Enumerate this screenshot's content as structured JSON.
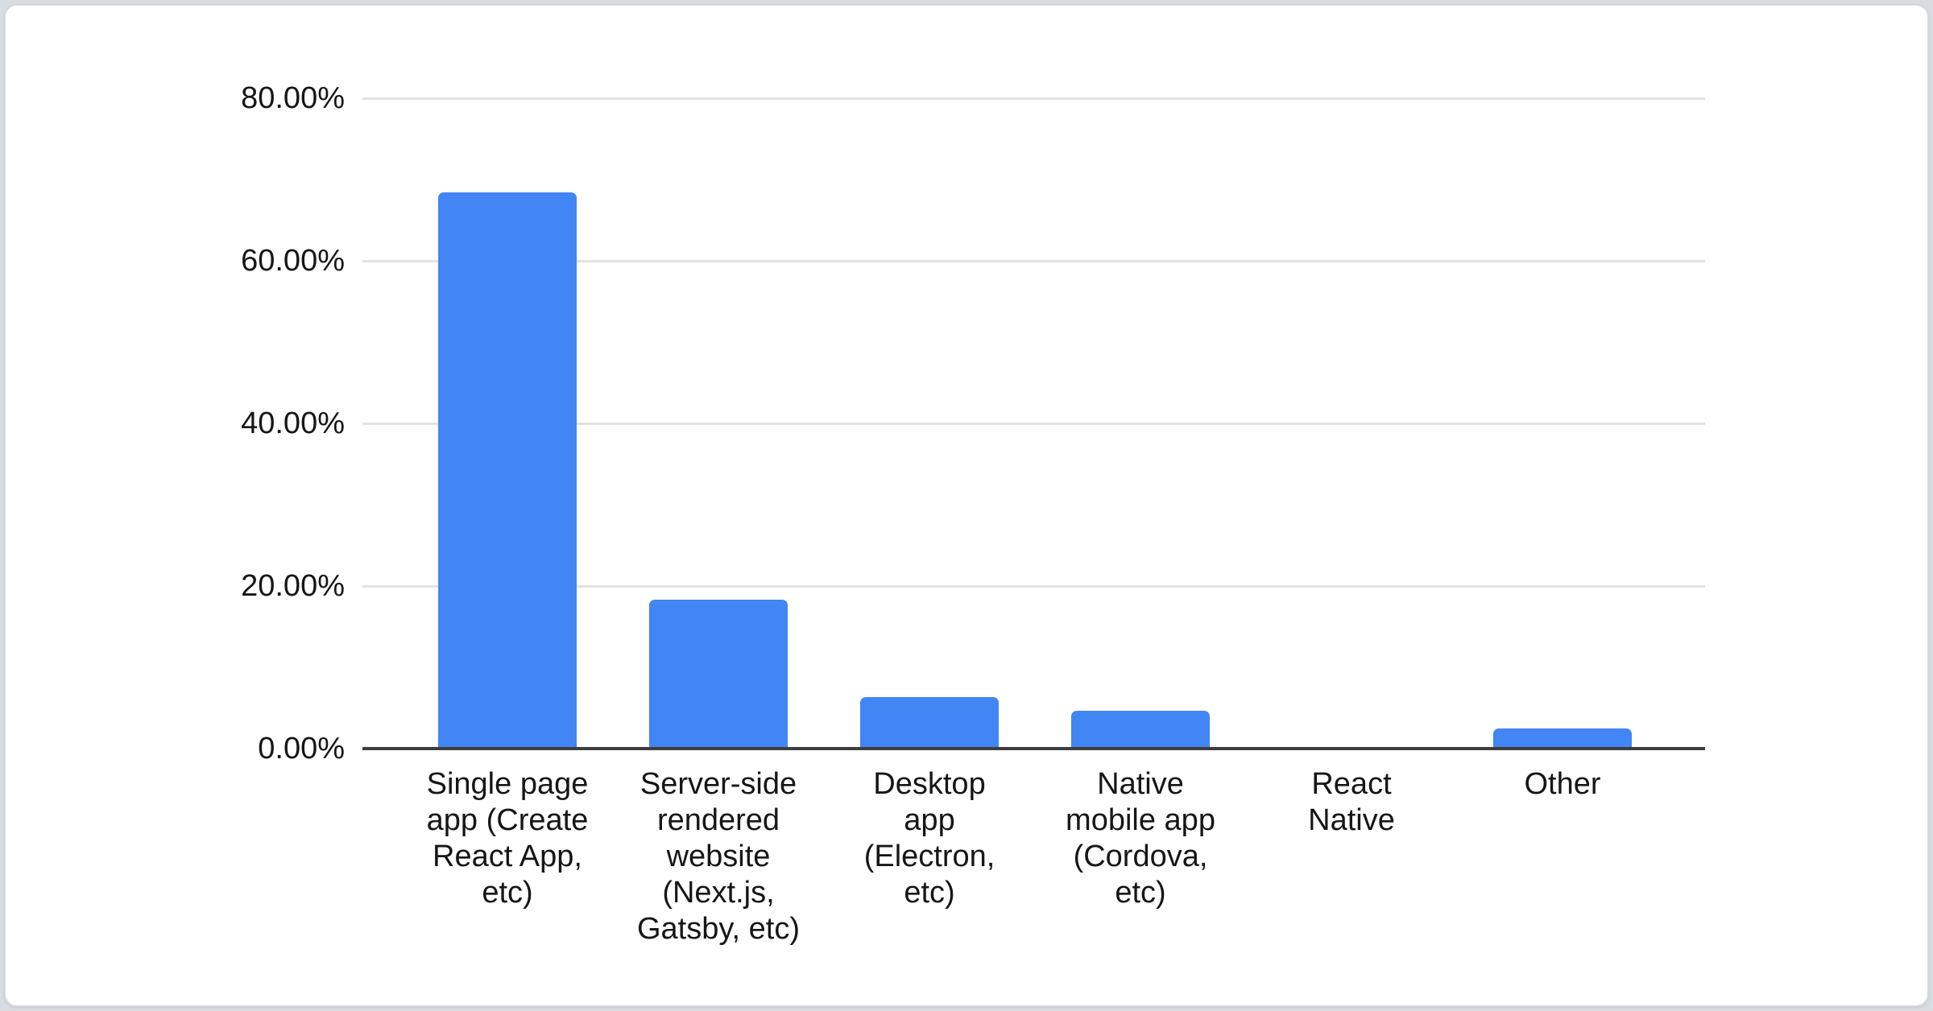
{
  "chart_data": {
    "type": "bar",
    "title": "",
    "legend": "none",
    "grid": true,
    "ylim": [
      0,
      80
    ],
    "y_ticks": [
      "80.00%",
      "60.00%",
      "40.00%",
      "20.00%",
      "0.00%"
    ],
    "bar_color": "#4285f4",
    "axis_line_color": "#3d3d3d",
    "gridline_color": "#e2e2e2",
    "categories": [
      {
        "label": "Single page app (Create React App, etc)",
        "display": "Single page\napp (Create\nReact App,\netc)"
      },
      {
        "label": "Server-side rendered website (Next.js, Gatsby, etc)",
        "display": "Server-side\nrendered\nwebsite\n(Next.js,\nGatsby, etc)"
      },
      {
        "label": "Desktop app (Electron, etc)",
        "display": "Desktop\napp\n(Electron,\netc)"
      },
      {
        "label": "Native mobile app (Cordova, etc)",
        "display": "Native\nmobile app\n(Cordova,\netc)"
      },
      {
        "label": "React Native",
        "display": "React\nNative"
      },
      {
        "label": "Other",
        "display": "Other"
      }
    ],
    "values": [
      68.4,
      18.3,
      6.3,
      4.7,
      0,
      2.5
    ]
  }
}
